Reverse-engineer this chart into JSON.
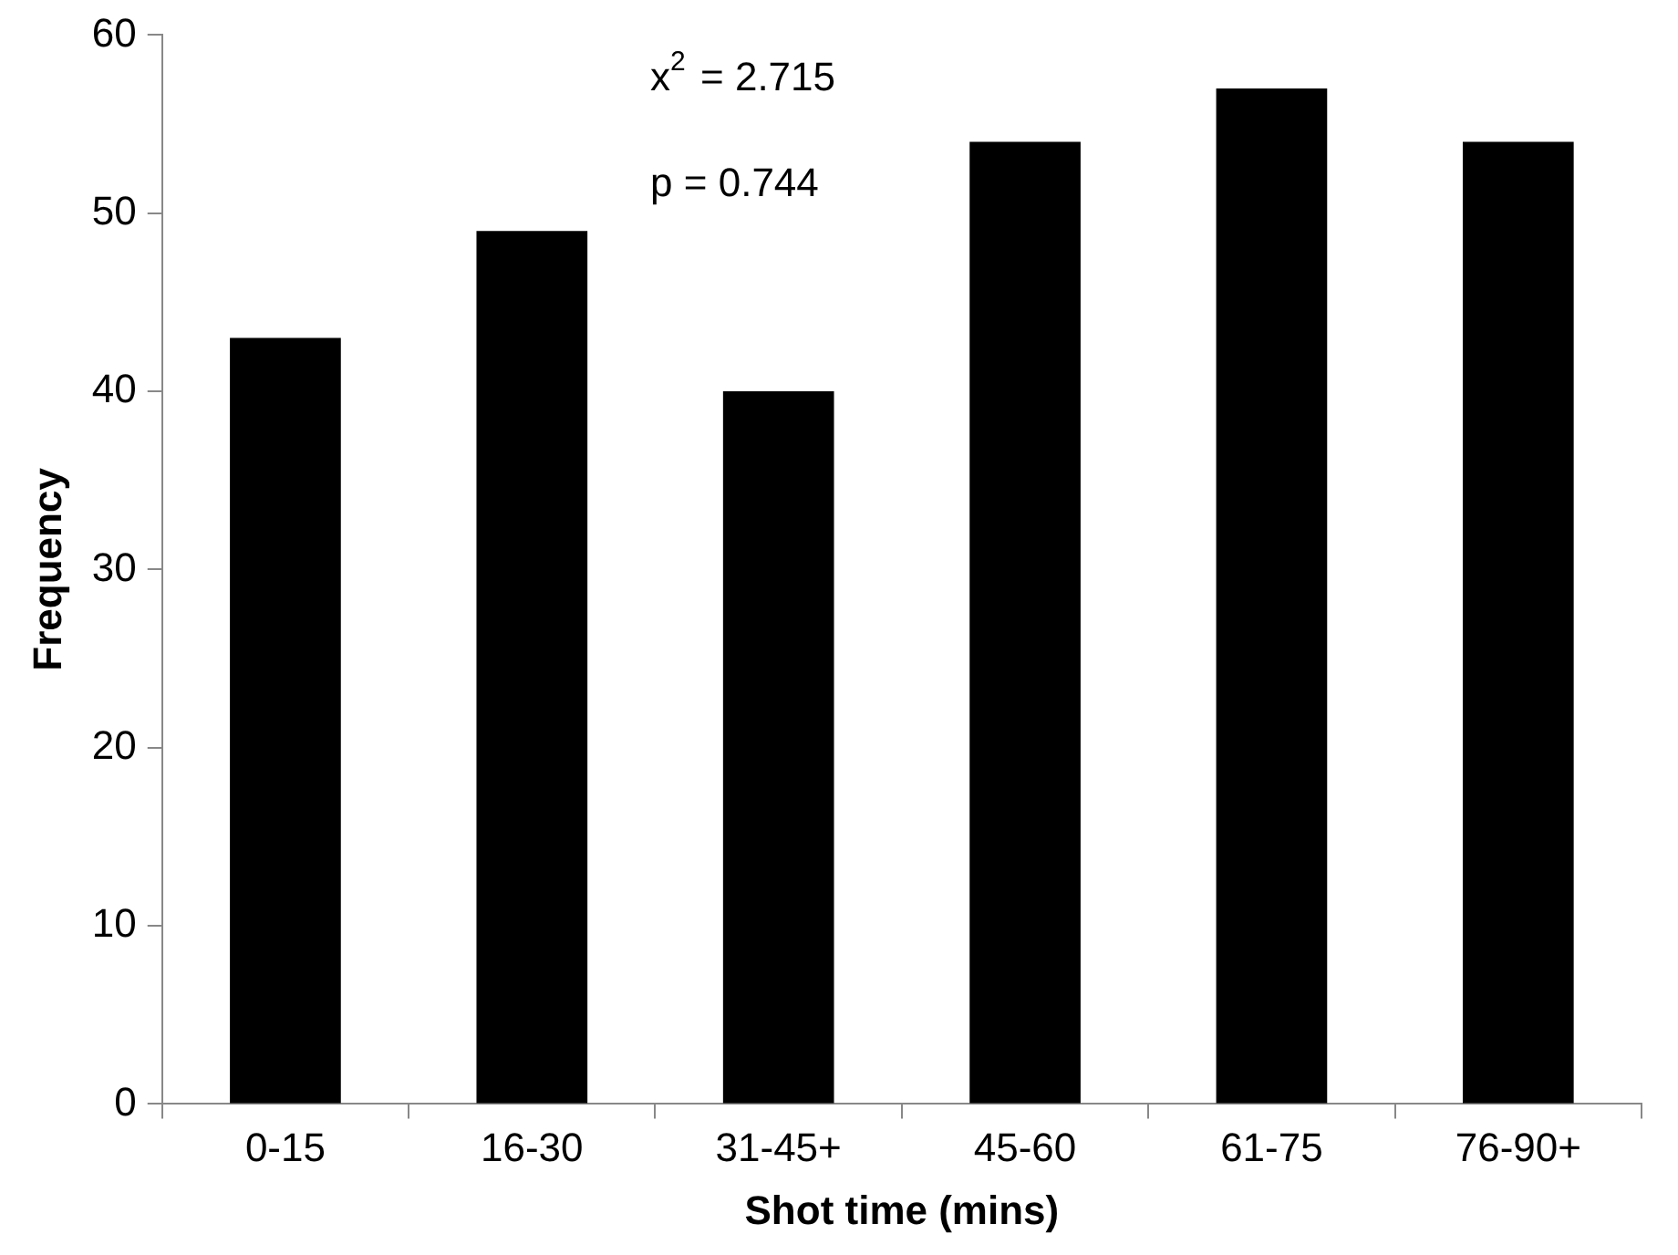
{
  "chart_data": {
    "type": "bar",
    "xlabel": "Shot time (mins)",
    "ylabel": "Frequency",
    "categories": [
      "0-15",
      "16-30",
      "31-45+",
      "45-60",
      "61-75",
      "76-90+"
    ],
    "values": [
      43,
      49,
      40,
      54,
      57,
      54
    ],
    "color": "#000000",
    "ylim": [
      0,
      60
    ],
    "yticks": [
      0,
      10,
      20,
      30,
      40,
      50,
      60
    ],
    "grid": false,
    "legend": false,
    "annotations": [
      "x$^{2}$ = 2.715",
      "p = 0.744"
    ]
  }
}
